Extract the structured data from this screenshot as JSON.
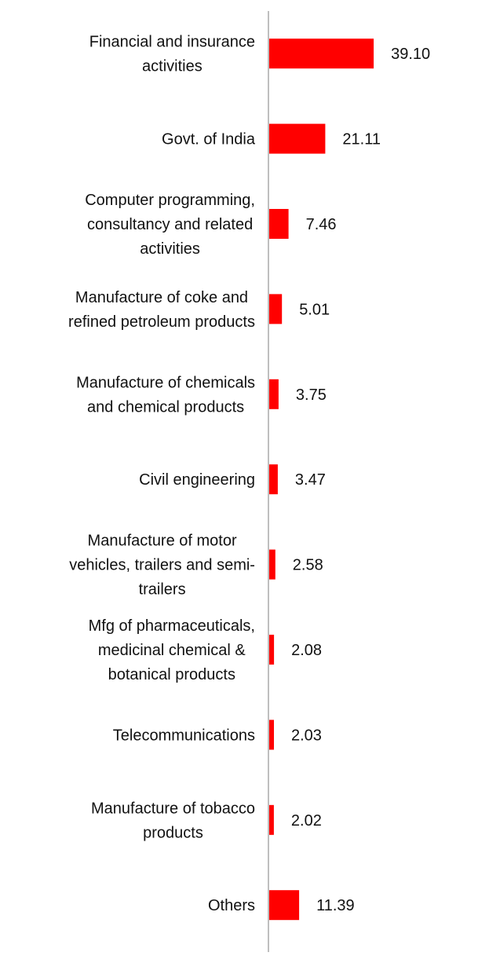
{
  "chart_data": {
    "type": "bar",
    "orientation": "horizontal",
    "title": "",
    "xlabel": "",
    "ylabel": "",
    "categories": [
      [
        "Financial and insurance",
        "activities"
      ],
      [
        "Govt. of India"
      ],
      [
        "Computer programming,",
        "consultancy and related",
        "activities"
      ],
      [
        "Manufacture of coke and",
        "refined petroleum products"
      ],
      [
        "Manufacture of chemicals",
        "and chemical products"
      ],
      [
        "Civil engineering"
      ],
      [
        "Manufacture of motor",
        "vehicles, trailers and semi-",
        "trailers"
      ],
      [
        "Mfg of pharmaceuticals,",
        "medicinal chemical &",
        "botanical products"
      ],
      [
        "Telecommunications"
      ],
      [
        "Manufacture of tobacco",
        "products"
      ],
      [
        "Others"
      ]
    ],
    "values": [
      39.1,
      21.11,
      7.46,
      5.01,
      3.75,
      3.47,
      2.58,
      2.08,
      2.03,
      2.02,
      11.39
    ],
    "value_labels": [
      "39.10",
      "21.11",
      "7.46",
      "5.01",
      "3.75",
      "3.47",
      "2.58",
      "2.08",
      "2.03",
      "2.02",
      "11.39"
    ],
    "xlim": [
      0,
      40
    ],
    "grid": false,
    "legend": "none",
    "bar_color": "#ff0000",
    "axis_color": "#bfbfbf",
    "text_color": "#111111"
  }
}
